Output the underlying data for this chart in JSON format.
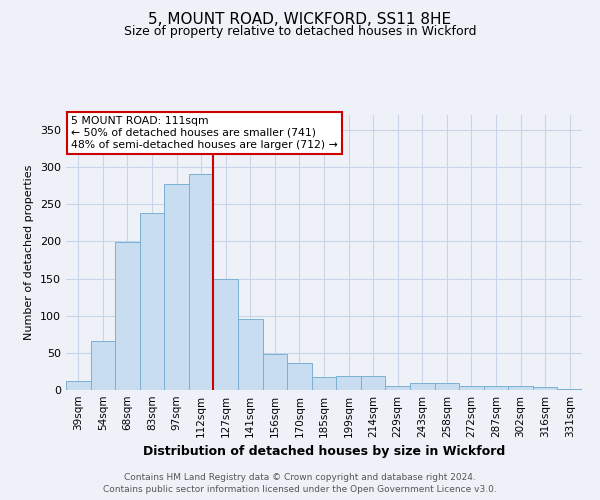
{
  "title1": "5, MOUNT ROAD, WICKFORD, SS11 8HE",
  "title2": "Size of property relative to detached houses in Wickford",
  "xlabel": "Distribution of detached houses by size in Wickford",
  "ylabel": "Number of detached properties",
  "footnote1": "Contains HM Land Registry data © Crown copyright and database right 2024.",
  "footnote2": "Contains public sector information licensed under the Open Government Licence v3.0.",
  "categories": [
    "39sqm",
    "54sqm",
    "68sqm",
    "83sqm",
    "97sqm",
    "112sqm",
    "127sqm",
    "141sqm",
    "156sqm",
    "170sqm",
    "185sqm",
    "199sqm",
    "214sqm",
    "229sqm",
    "243sqm",
    "258sqm",
    "272sqm",
    "287sqm",
    "302sqm",
    "316sqm",
    "331sqm"
  ],
  "values": [
    12,
    66,
    199,
    238,
    277,
    290,
    150,
    95,
    48,
    36,
    18,
    19,
    19,
    5,
    9,
    9,
    5,
    5,
    5,
    4,
    2
  ],
  "bar_color": "#c8ddf0",
  "bar_edge_color": "#7ab0d4",
  "vline_x": 5.5,
  "vline_color": "#cc0000",
  "annotation_title": "5 MOUNT ROAD: 111sqm",
  "annotation_line2": "← 50% of detached houses are smaller (741)",
  "annotation_line3": "48% of semi-detached houses are larger (712) →",
  "annotation_box_color": "#ffffff",
  "annotation_box_edge": "#cc0000",
  "ylim": [
    0,
    370
  ],
  "grid_color": "#c8d4e8",
  "background_color": "#eef2f8",
  "title1_fontsize": 11,
  "title2_fontsize": 9,
  "ylabel_fontsize": 8,
  "xlabel_fontsize": 9,
  "tick_fontsize": 7.5
}
